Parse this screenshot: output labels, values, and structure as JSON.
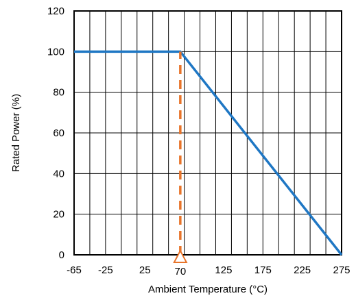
{
  "chart_data": {
    "type": "line",
    "title": "",
    "xlabel": "Ambient Temperature (°C)",
    "ylabel": "Rated Power (%)",
    "xlim": [
      -65,
      275
    ],
    "ylim": [
      0,
      120
    ],
    "x_ticks": [
      -65,
      -25,
      25,
      75,
      125,
      175,
      225,
      275
    ],
    "x_tick_labels": [
      "-65",
      "-25",
      "25",
      "",
      "125",
      "175",
      "225",
      "275"
    ],
    "y_ticks": [
      0,
      20,
      40,
      60,
      80,
      100,
      120
    ],
    "y_tick_labels": [
      "0",
      "20",
      "40",
      "60",
      "80",
      "100",
      "120"
    ],
    "x_grid_step": 20,
    "y_grid_step": 20,
    "grid": true,
    "series": [
      {
        "x": [
          -65,
          70,
          275
        ],
        "y": [
          100,
          100,
          0
        ],
        "color": "#1f77c4"
      }
    ],
    "annotations": [
      {
        "type": "vertical-dashed-line",
        "x": 70,
        "y_from": 0,
        "y_to": 100,
        "color": "#e8742a"
      },
      {
        "type": "marker",
        "shape": "triangle-outline",
        "x": 70,
        "y": 0,
        "label": "70",
        "color": "#e8742a"
      }
    ]
  }
}
